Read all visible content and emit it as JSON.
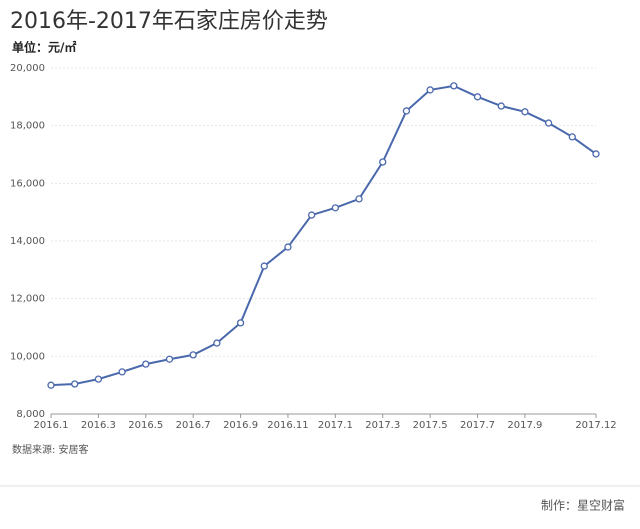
{
  "chart_data": {
    "type": "line",
    "title": "2016年-2017年石家庄房价走势",
    "subtitle": "单位：元/㎡",
    "categories": [
      "2016.1",
      null,
      "2016.3",
      null,
      "2016.5",
      null,
      "2016.7",
      null,
      "2016.9",
      null,
      "2016.11",
      null,
      "2017.1",
      null,
      "2017.3",
      null,
      "2017.5",
      null,
      "2017.7",
      null,
      "2017.9",
      null,
      null,
      "2017.12"
    ],
    "values": [
      9000,
      9040,
      9210,
      9460,
      9730,
      9900,
      10050,
      10460,
      11160,
      13130,
      13790,
      14900,
      15150,
      15460,
      16740,
      18510,
      19240,
      19380,
      19000,
      18680,
      18480,
      18090,
      17610,
      17020
    ],
    "color": "#4a68ac",
    "ylim": [
      8000,
      20000
    ],
    "yticks": [
      {
        "value": 8000,
        "label": "8,000"
      },
      {
        "value": 10000,
        "label": "10,000"
      },
      {
        "value": 12000,
        "label": "12,000"
      },
      {
        "value": 14000,
        "label": "14,000"
      },
      {
        "value": 16000,
        "label": "16,000"
      },
      {
        "value": 18000,
        "label": "18,000"
      },
      {
        "value": 20000,
        "label": "20,000"
      }
    ],
    "grid": true,
    "source": "数据来源: 安居客",
    "credit": "制作：星空财富"
  }
}
